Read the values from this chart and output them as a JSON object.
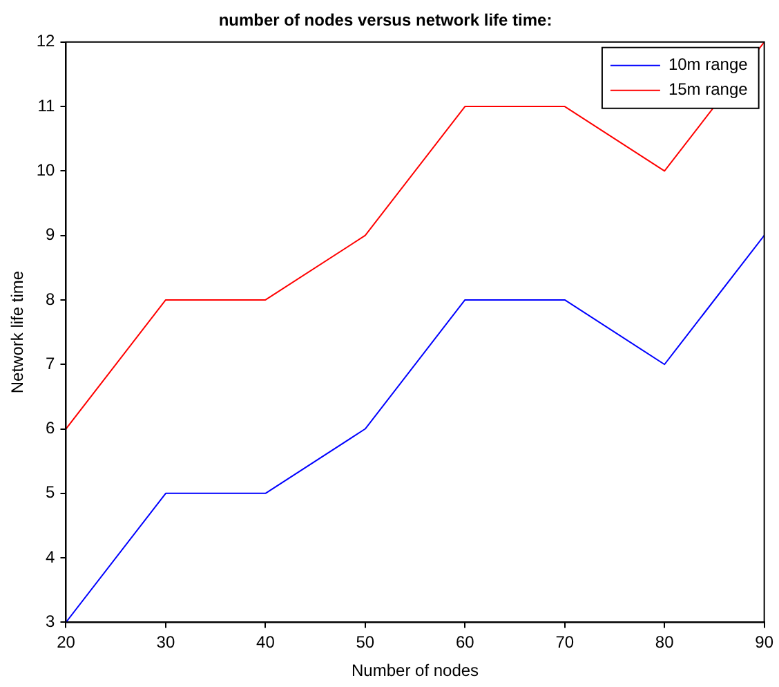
{
  "chart_data": {
    "type": "line",
    "title": "number of nodes versus network life time:",
    "xlabel": "Number of nodes",
    "ylabel": "Network life time",
    "x": [
      20,
      30,
      40,
      50,
      60,
      70,
      80,
      90
    ],
    "series": [
      {
        "name": "10m range",
        "color": "#0000ff",
        "values": [
          3,
          5,
          5,
          6,
          8,
          8,
          7,
          9
        ]
      },
      {
        "name": "15m range",
        "color": "#ff0000",
        "values": [
          6,
          8,
          8,
          9,
          11,
          11,
          10,
          12
        ]
      }
    ],
    "xlim": [
      20,
      90
    ],
    "xticks": [
      20,
      30,
      40,
      50,
      60,
      70,
      80,
      90
    ],
    "ylim": [
      3,
      12
    ],
    "yticks": [
      3,
      4,
      5,
      6,
      7,
      8,
      9,
      10,
      11,
      12
    ],
    "grid": false,
    "legend": "top right",
    "marker": "none",
    "line_style": "solid"
  }
}
